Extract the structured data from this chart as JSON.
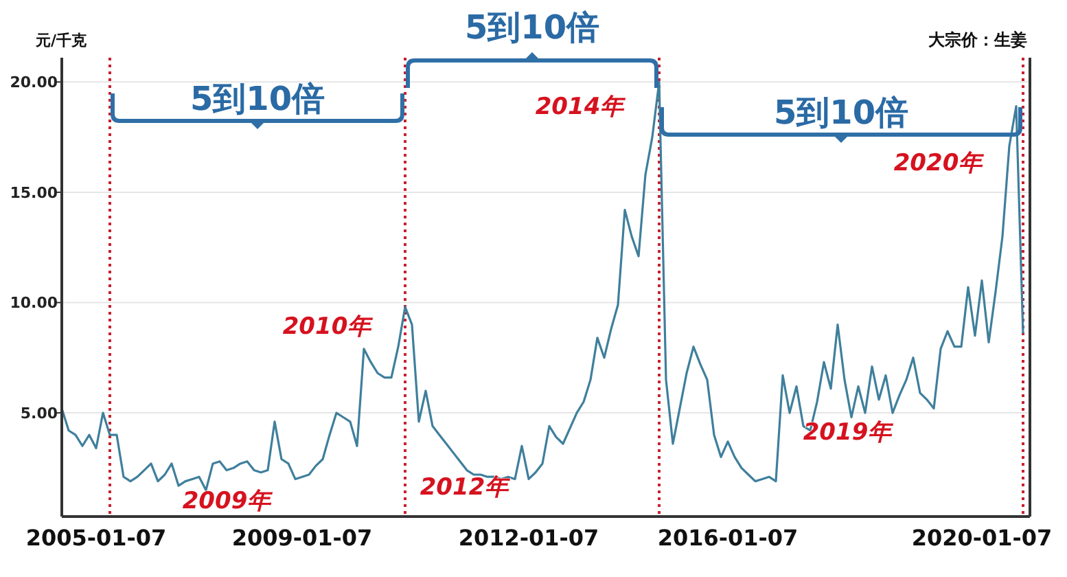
{
  "chart_data": {
    "type": "line",
    "title": "大宗价：生姜",
    "ylabel": "元/千克",
    "categories": [
      null,
      null,
      null,
      null,
      null,
      "2005-01-07",
      null,
      null,
      null,
      null,
      null,
      null,
      null,
      null,
      null,
      null,
      null,
      null,
      null,
      null,
      null,
      null,
      null,
      null,
      null,
      null,
      null,
      null,
      null,
      null,
      null,
      null,
      null,
      null,
      null,
      "2009-01-07",
      null,
      null,
      null,
      null,
      null,
      null,
      null,
      null,
      null,
      null,
      null,
      null,
      null,
      null,
      null,
      null,
      null,
      null,
      null,
      null,
      null,
      null,
      null,
      null,
      null,
      null,
      null,
      null,
      null,
      null,
      null,
      null,
      "2012-01-07",
      null,
      null,
      null,
      null,
      null,
      null,
      null,
      null,
      null,
      null,
      null,
      null,
      null,
      null,
      null,
      null,
      null,
      null,
      null,
      null,
      null,
      null,
      null,
      null,
      null,
      null,
      null,
      null,
      "2016-01-07",
      null,
      null,
      null,
      null,
      null,
      null,
      null,
      null,
      null,
      null,
      null,
      null,
      null,
      null,
      null,
      null,
      null,
      null,
      null,
      null,
      null,
      null,
      null,
      null,
      null,
      null,
      null,
      null,
      null,
      null,
      null,
      null,
      null,
      null,
      null,
      null,
      "2020-01-07",
      null,
      null,
      null,
      null,
      null,
      null
    ],
    "series": [
      {
        "color": "#3f7f9c",
        "values": [
          5.2,
          4.2,
          4.0,
          3.5,
          4.0,
          3.4,
          5.0,
          4.0,
          4.0,
          2.1,
          1.9,
          2.1,
          2.4,
          2.7,
          1.9,
          2.2,
          2.7,
          1.7,
          1.9,
          2.0,
          2.1,
          1.5,
          2.7,
          2.8,
          2.4,
          2.5,
          2.7,
          2.8,
          2.4,
          2.3,
          2.4,
          4.6,
          2.9,
          2.7,
          2.0,
          2.1,
          2.2,
          2.6,
          2.9,
          4.0,
          5.0,
          4.8,
          4.6,
          3.5,
          7.9,
          7.3,
          6.8,
          6.6,
          6.6,
          8.0,
          9.8,
          9.0,
          4.6,
          6.0,
          4.4,
          4.0,
          3.6,
          3.2,
          2.8,
          2.4,
          2.2,
          2.2,
          2.1,
          2.1,
          2.0,
          2.1,
          2.0,
          3.5,
          2.0,
          2.3,
          2.7,
          4.4,
          3.9,
          3.6,
          4.3,
          5.0,
          5.5,
          6.5,
          8.4,
          7.5,
          8.8,
          9.9,
          14.2,
          13.0,
          12.1,
          15.8,
          17.5,
          20.0,
          6.5,
          3.6,
          5.2,
          6.8,
          8.0,
          7.2,
          6.5,
          4.0,
          3.0,
          3.7,
          3.0,
          2.5,
          2.2,
          1.9,
          2.0,
          2.1,
          1.9,
          6.7,
          5.0,
          6.2,
          4.4,
          4.2,
          5.5,
          7.3,
          6.1,
          9.0,
          6.5,
          4.8,
          6.2,
          5.0,
          7.1,
          5.6,
          6.7,
          5.0,
          5.8,
          6.5,
          7.5,
          5.9,
          5.6,
          5.2,
          7.9,
          8.7,
          8.0,
          8.0,
          10.7,
          8.5,
          11.0,
          8.2,
          10.5,
          13.0,
          17.1,
          18.9,
          8.6
        ]
      }
    ],
    "ylim": [
      0.3,
      21.1
    ],
    "yticks": [
      {
        "value": 5,
        "label": "5.00"
      },
      {
        "value": 10,
        "label": "10.00"
      },
      {
        "value": 15,
        "label": "15.00"
      },
      {
        "value": 20,
        "label": "20.00"
      }
    ],
    "grid": "y",
    "marker": "none",
    "line_style": "solid",
    "annotations": [
      "5到10倍",
      "5到10倍",
      "5到10倍",
      "2009年",
      "2010年",
      "2012年",
      "2014年",
      "2019年",
      "2020年"
    ]
  }
}
